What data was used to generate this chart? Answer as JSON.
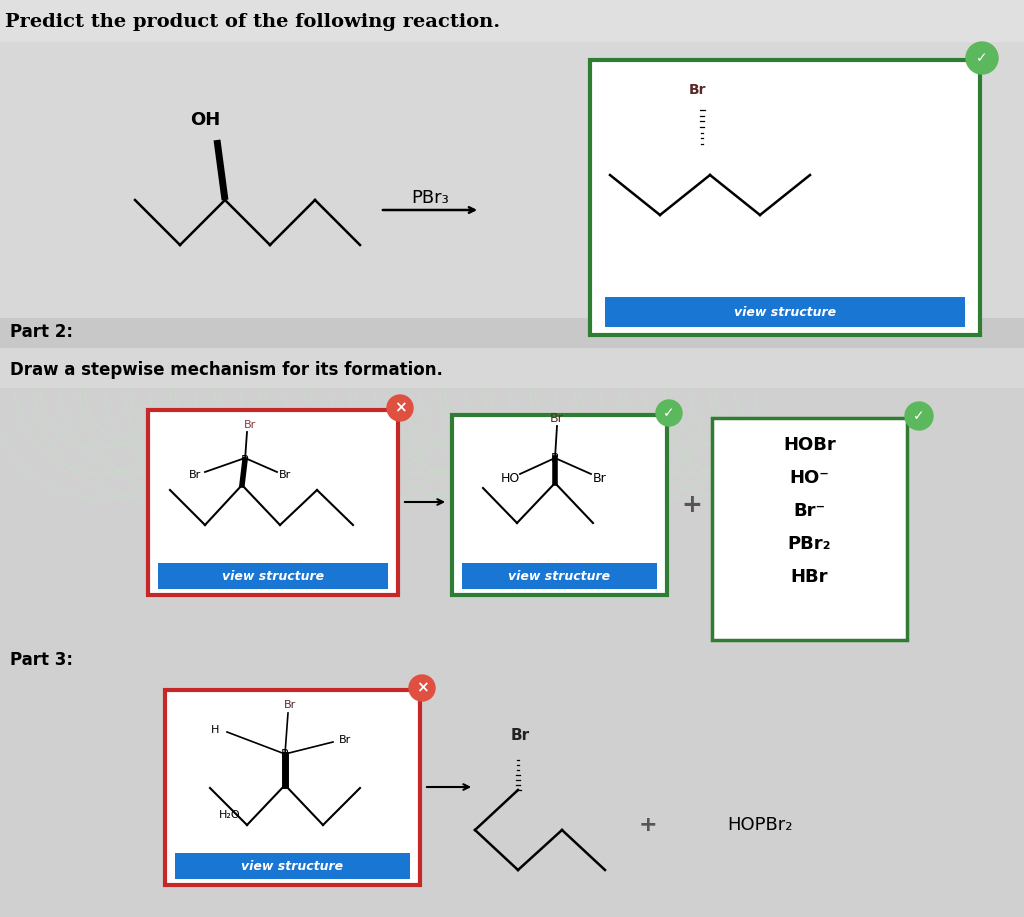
{
  "bg_color": "#d0d0d0",
  "title": "Predict the product of the following reaction.",
  "part2_label": "Part 2:",
  "part2_desc": "Draw a stepwise mechanism for its formation.",
  "part3_label": "Part 3:",
  "reagent_label": "PBr₃",
  "view_structure_text": "view structure",
  "view_structure_bg": "#1976D2",
  "view_structure_color": "#ffffff",
  "green_box_color": "#2e7d32",
  "red_box_color": "#c62828",
  "checkmark_color": "#5cb85c",
  "x_mark_color": "#e05040",
  "options_list": [
    "HOBr",
    "HO⁻",
    "Br⁻",
    "PBr₂",
    "HBr"
  ],
  "hopbr2_label": "HOPBr₂",
  "light_bg": "#dcdcdc",
  "separator_color": "#c0c0c0",
  "pattern_color_light": "#e8f0e8",
  "pattern_color_mid": "#d0e8d8"
}
